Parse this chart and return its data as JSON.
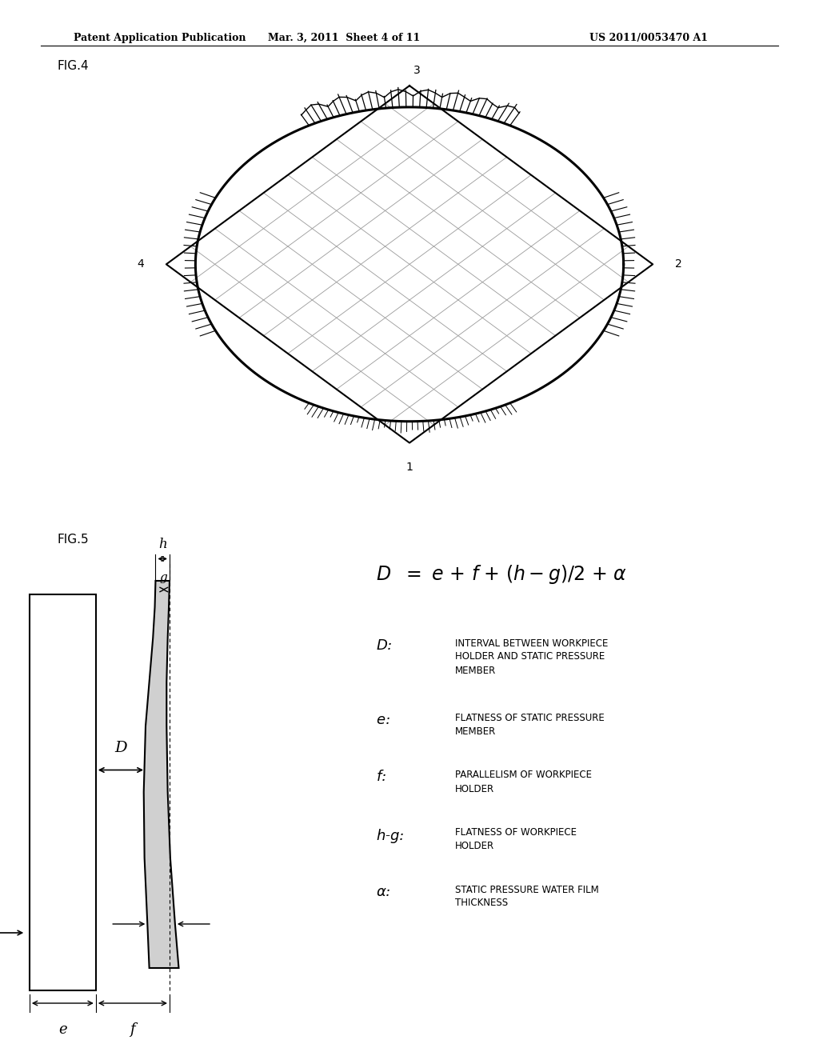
{
  "header_left": "Patent Application Publication",
  "header_mid": "Mar. 3, 2011  Sheet 4 of 11",
  "header_right": "US 2011/0053470 A1",
  "fig4_label": "FIG.4",
  "fig5_label": "FIG.5",
  "legend_D": "INTERVAL BETWEEN WORKPIECE\nHOLDER AND STATIC PRESSURE\nMEMBER",
  "legend_e": "FLATNESS OF STATIC PRESSURE\nMEMBER",
  "legend_f": "PARALLELISM OF WORKPIECE\nHOLDER",
  "legend_hg": "FLATNESS OF WORKPIECE\nHOLDER",
  "legend_alpha": "STATIC PRESSURE WATER FILM\nTHICKNESS",
  "bg_color": "#ffffff",
  "grid_color": "#999999"
}
